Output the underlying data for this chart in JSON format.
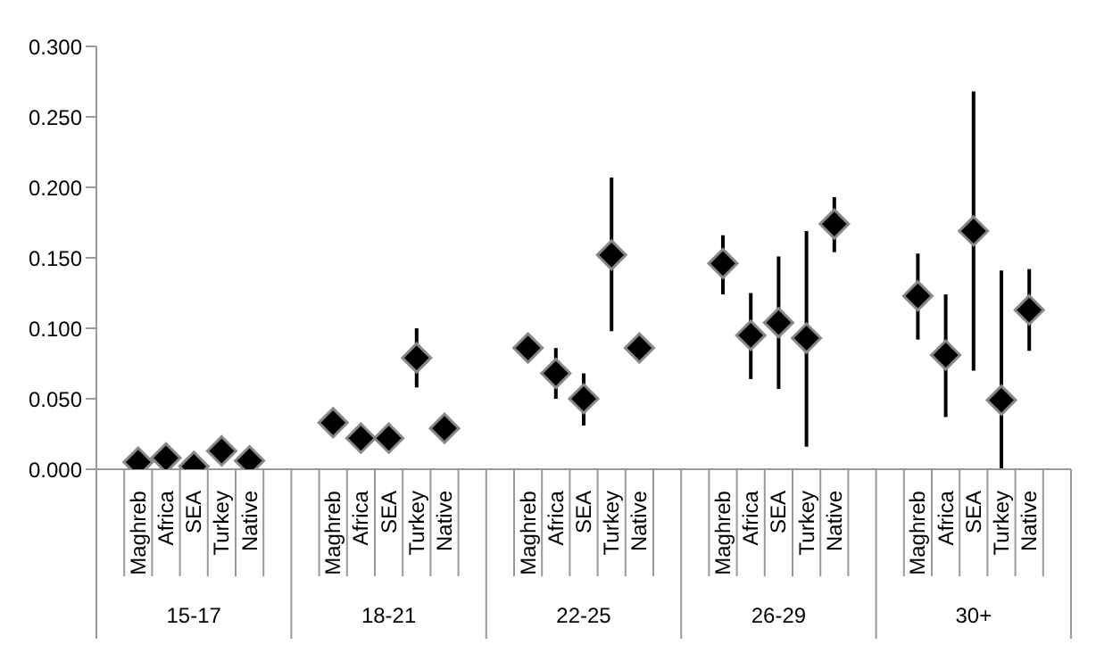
{
  "chart_data": {
    "type": "scatter",
    "marker": "diamond",
    "color": "#000000",
    "categories": [
      null,
      "Maghreb",
      "Africa",
      "SEA",
      "Turkey",
      "Native",
      null,
      null,
      "Maghreb",
      "Africa",
      "SEA",
      "Turkey",
      "Native",
      null,
      null,
      "Maghreb",
      "Africa",
      "SEA",
      "Turkey",
      "Native",
      null,
      null,
      "Maghreb",
      "Africa",
      "SEA",
      "Turkey",
      "Native",
      null,
      null,
      "Maghreb",
      "Africa",
      "SEA",
      "Turkey",
      "Native",
      null
    ],
    "values": [
      null,
      0.005,
      0.008,
      0.002,
      0.013,
      0.006,
      null,
      null,
      0.033,
      0.022,
      0.022,
      0.079,
      0.029,
      null,
      null,
      0.086,
      0.068,
      0.05,
      0.152,
      0.086,
      null,
      null,
      0.146,
      0.095,
      0.104,
      0.093,
      0.174,
      null,
      null,
      0.123,
      0.081,
      0.169,
      0.049,
      0.113,
      null
    ],
    "errors": [
      null,
      null,
      null,
      null,
      null,
      null,
      null,
      null,
      null,
      null,
      null,
      [
        0.058,
        0.1
      ],
      null,
      null,
      null,
      [
        0.076,
        0.095
      ],
      [
        0.05,
        0.086
      ],
      [
        0.031,
        0.068
      ],
      [
        0.098,
        0.207
      ],
      null,
      null,
      null,
      [
        0.124,
        0.166
      ],
      [
        0.064,
        0.125
      ],
      [
        0.057,
        0.151
      ],
      [
        0.016,
        0.169
      ],
      [
        0.154,
        0.193
      ],
      null,
      null,
      [
        0.092,
        0.153
      ],
      [
        0.037,
        0.124
      ],
      [
        0.07,
        0.268
      ],
      [
        0.0,
        0.141
      ],
      [
        0.084,
        0.142
      ],
      null
    ],
    "annotations": [
      "15-17",
      "18-21",
      "22-25",
      "26-29",
      "30+"
    ],
    "ylim": [
      0,
      0.3
    ],
    "yticks": [
      {
        "value": 0,
        "label": "0.000"
      },
      {
        "value": 0.05,
        "label": "0.050"
      },
      {
        "value": 0.1,
        "label": "0.100"
      },
      {
        "value": 0.15,
        "label": "0.150"
      },
      {
        "value": 0.2,
        "label": "0.200"
      },
      {
        "value": 0.25,
        "label": "0.250"
      },
      {
        "value": 0.3,
        "label": "0.300"
      }
    ],
    "grid": false,
    "legend": false
  }
}
